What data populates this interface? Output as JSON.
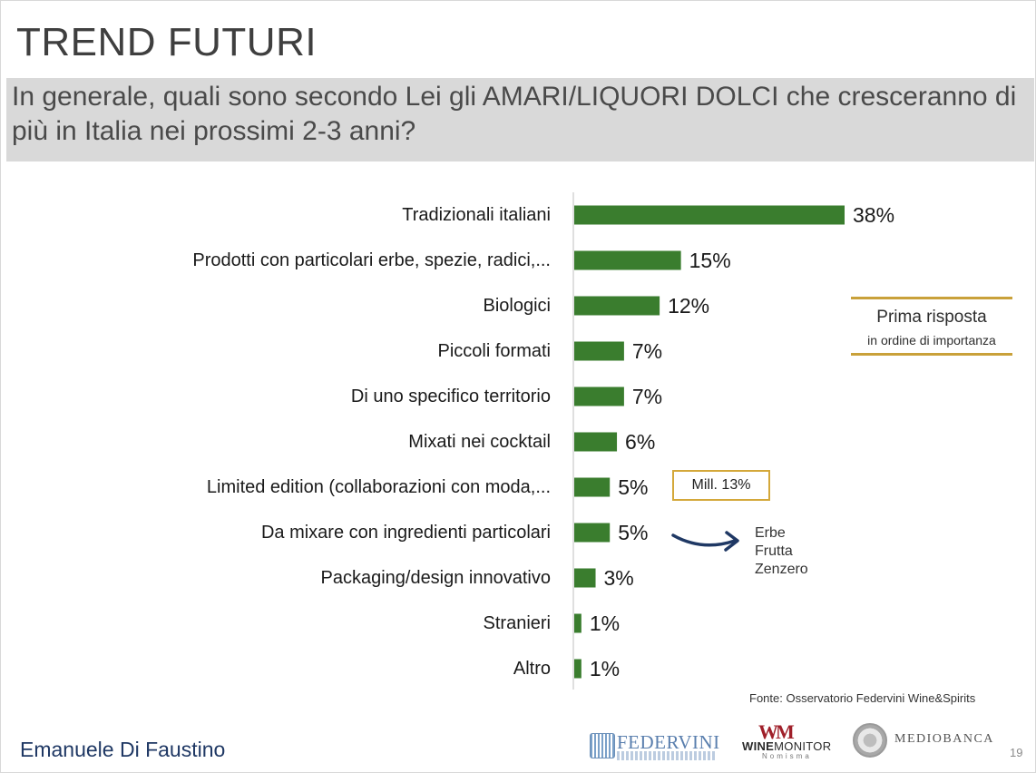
{
  "header": {
    "title": "TREND FUTURI",
    "question": "In generale, quali sono secondo Lei gli AMARI/LIQUORI DOLCI che cresceranno di più in Italia nei prossimi 2-3 anni?"
  },
  "chart_data": {
    "type": "bar",
    "orientation": "horizontal",
    "categories": [
      "Tradizionali italiani",
      "Prodotti con particolari erbe, spezie, radici,...",
      "Biologici",
      "Piccoli formati",
      "Di uno specifico territorio",
      "Mixati nei cocktail",
      "Limited edition (collaborazioni con moda,...",
      "Da mixare con ingredienti particolari",
      "Packaging/design innovativo",
      "Stranieri",
      "Altro"
    ],
    "values": [
      38,
      15,
      12,
      7,
      7,
      6,
      5,
      5,
      3,
      1,
      1
    ],
    "value_labels": [
      "38%",
      "15%",
      "12%",
      "7%",
      "7%",
      "6%",
      "5%",
      "5%",
      "3%",
      "1%",
      "1%"
    ],
    "unit": "%",
    "bar_color": "#3a7d2e",
    "xlim": [
      0,
      38
    ]
  },
  "legend": {
    "title": "Prima risposta",
    "subtitle": "in ordine di importanza",
    "line_color": "#c9a13a"
  },
  "annotations": {
    "mill_badge": "Mill. 13%",
    "ingredients": [
      "Erbe",
      "Frutta",
      "Zenzero"
    ]
  },
  "footer": {
    "source": "Fonte: Osservatorio Federvini Wine&Spirits",
    "author": "Emanuele Di Faustino",
    "page_number": "19",
    "logos": {
      "federvini": "FEDERVINI",
      "winemonitor_bold": "WINE",
      "winemonitor_light": "MONITOR",
      "winemonitor_sub": "Nomisma",
      "mediobanca": "MEDIOBANCA"
    }
  }
}
